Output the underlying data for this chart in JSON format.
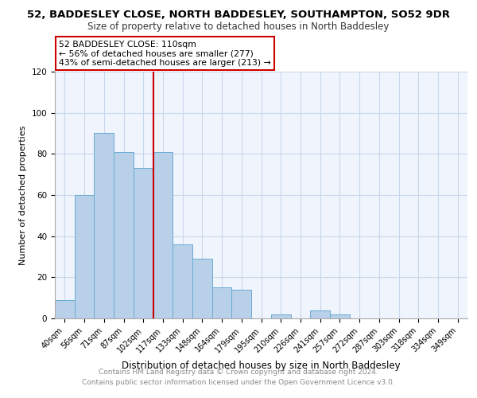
{
  "title": "52, BADDESLEY CLOSE, NORTH BADDESLEY, SOUTHAMPTON, SO52 9DR",
  "subtitle": "Size of property relative to detached houses in North Baddesley",
  "xlabel": "Distribution of detached houses by size in North Baddesley",
  "ylabel": "Number of detached properties",
  "bar_labels": [
    "40sqm",
    "56sqm",
    "71sqm",
    "87sqm",
    "102sqm",
    "117sqm",
    "133sqm",
    "148sqm",
    "164sqm",
    "179sqm",
    "195sqm",
    "210sqm",
    "226sqm",
    "241sqm",
    "257sqm",
    "272sqm",
    "287sqm",
    "303sqm",
    "318sqm",
    "334sqm",
    "349sqm"
  ],
  "bar_heights": [
    9,
    60,
    90,
    81,
    73,
    81,
    36,
    29,
    15,
    14,
    0,
    2,
    0,
    4,
    2,
    0,
    0,
    0,
    0,
    0,
    0
  ],
  "bar_color": "#b8d0e8",
  "bar_edge_color": "#6aaad4",
  "annotation_line1": "52 BADDESLEY CLOSE: 110sqm",
  "annotation_line2": "← 56% of detached houses are smaller (277)",
  "annotation_line3": "43% of semi-detached houses are larger (213) →",
  "annotation_box_edgecolor": "#cc0000",
  "vline_color": "#cc0000",
  "ylim": [
    0,
    120
  ],
  "yticks": [
    0,
    20,
    40,
    60,
    80,
    100,
    120
  ],
  "footer_line1": "Contains HM Land Registry data © Crown copyright and database right 2024.",
  "footer_line2": "Contains public sector information licensed under the Open Government Licence v3.0.",
  "bg_color": "#ffffff",
  "plot_bg_color": "#f0f4fc",
  "grid_color": "#c8d8ec",
  "title_fontsize": 9.5,
  "subtitle_fontsize": 8.5,
  "xlabel_fontsize": 8.5,
  "ylabel_fontsize": 8,
  "tick_fontsize": 7,
  "footer_fontsize": 6.5
}
